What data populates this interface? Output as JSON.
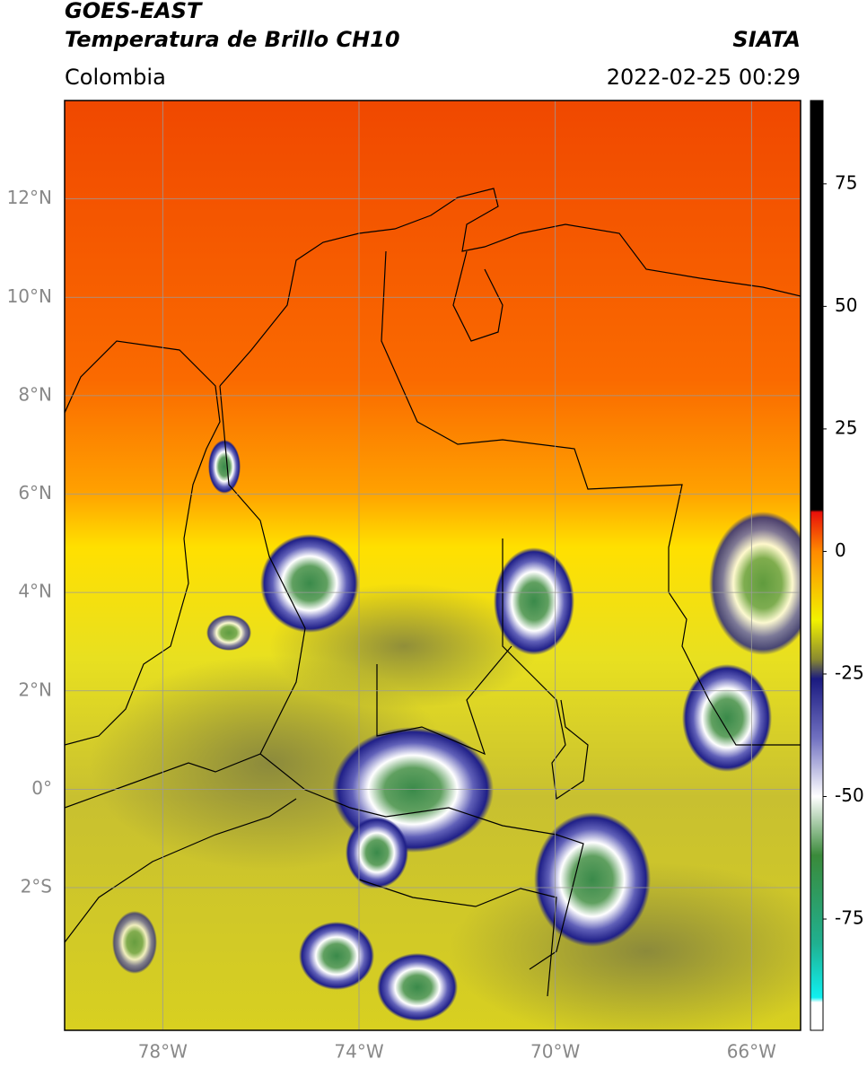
{
  "header": {
    "title": "GOES-EAST",
    "subtitle": "Temperatura de Brillo CH10",
    "source": "SIATA",
    "region": "Colombia",
    "datetime": "2022-02-25 00:29"
  },
  "map": {
    "lon_range": [
      -80,
      -65
    ],
    "lat_range": [
      -4.9,
      14
    ],
    "lat_ticks": [
      {
        "value": 12,
        "label": "12°N"
      },
      {
        "value": 10,
        "label": "10°N"
      },
      {
        "value": 8,
        "label": "8°N"
      },
      {
        "value": 6,
        "label": "6°N"
      },
      {
        "value": 4,
        "label": "4°N"
      },
      {
        "value": 2,
        "label": "2°N"
      },
      {
        "value": 0,
        "label": "0°"
      },
      {
        "value": -2,
        "label": "2°S"
      }
    ],
    "lon_ticks": [
      {
        "value": -78,
        "label": "78°W"
      },
      {
        "value": -74,
        "label": "74°W"
      },
      {
        "value": -70,
        "label": "70°W"
      },
      {
        "value": -66,
        "label": "66°W"
      }
    ],
    "grid": true,
    "grid_color": "#9a9a9a"
  },
  "colorbar": {
    "lim": [
      -97.7,
      92
    ],
    "ticks": [
      75,
      50,
      25,
      0,
      -25,
      -50,
      -75
    ],
    "stops": [
      {
        "value": 92,
        "color": "#000000"
      },
      {
        "value": 8.5,
        "color": "#000000"
      },
      {
        "value": 8,
        "color": "#e8100a"
      },
      {
        "value": 0,
        "color": "#ff8a00"
      },
      {
        "value": -14,
        "color": "#f2f200"
      },
      {
        "value": -22,
        "color": "#8a8a30"
      },
      {
        "value": -26,
        "color": "#1a1a80"
      },
      {
        "value": -38,
        "color": "#7070c0"
      },
      {
        "value": -50,
        "color": "#ffffff"
      },
      {
        "value": -62,
        "color": "#3a8a3a"
      },
      {
        "value": -80,
        "color": "#20b090"
      },
      {
        "value": -91,
        "color": "#10f0f0"
      },
      {
        "value": -92,
        "color": "#ffffff"
      },
      {
        "value": -97.7,
        "color": "#ffffff"
      }
    ]
  }
}
